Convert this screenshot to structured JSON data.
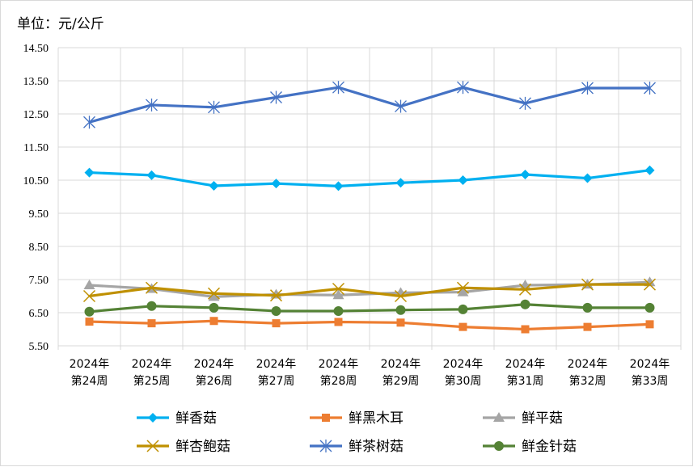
{
  "unit_label": "单位：元/公斤",
  "chart_data": {
    "type": "line",
    "categories": [
      [
        "2024年",
        "第24周"
      ],
      [
        "2024年",
        "第25周"
      ],
      [
        "2024年",
        "第26周"
      ],
      [
        "2024年",
        "第27周"
      ],
      [
        "2024年",
        "第28周"
      ],
      [
        "2024年",
        "第29周"
      ],
      [
        "2024年",
        "第30周"
      ],
      [
        "2024年",
        "第31周"
      ],
      [
        "2024年",
        "第32周"
      ],
      [
        "2024年",
        "第33周"
      ]
    ],
    "yticks": [
      "5.50",
      "6.50",
      "7.50",
      "8.50",
      "9.50",
      "10.50",
      "11.50",
      "12.50",
      "13.50",
      "14.50"
    ],
    "ylim": [
      5.5,
      14.5
    ],
    "grid": true,
    "legend_position": "bottom",
    "series": [
      {
        "name": "鲜香菇",
        "color": "#00B0F0",
        "marker": "diamond",
        "values": [
          10.73,
          10.65,
          10.33,
          10.4,
          10.32,
          10.42,
          10.5,
          10.67,
          10.56,
          10.8
        ]
      },
      {
        "name": "鲜黑木耳",
        "color": "#ED7D31",
        "marker": "square",
        "values": [
          6.23,
          6.18,
          6.25,
          6.18,
          6.22,
          6.2,
          6.07,
          6.0,
          6.07,
          6.15
        ]
      },
      {
        "name": "鲜平菇",
        "color": "#A5A5A5",
        "marker": "triangle",
        "values": [
          7.33,
          7.22,
          6.98,
          7.05,
          7.03,
          7.1,
          7.12,
          7.33,
          7.35,
          7.42
        ]
      },
      {
        "name": "鲜杏鲍菇",
        "color": "#BF9000",
        "marker": "x",
        "values": [
          7.0,
          7.25,
          7.08,
          7.02,
          7.22,
          7.0,
          7.25,
          7.2,
          7.35,
          7.35
        ]
      },
      {
        "name": "鲜茶树菇",
        "color": "#4472C4",
        "marker": "star",
        "values": [
          12.25,
          12.77,
          12.7,
          13.0,
          13.3,
          12.73,
          13.3,
          12.82,
          13.28,
          13.28
        ]
      },
      {
        "name": "鲜金针菇",
        "color": "#548235",
        "marker": "circle",
        "values": [
          6.53,
          6.7,
          6.65,
          6.55,
          6.55,
          6.58,
          6.6,
          6.75,
          6.65,
          6.65
        ]
      }
    ]
  }
}
